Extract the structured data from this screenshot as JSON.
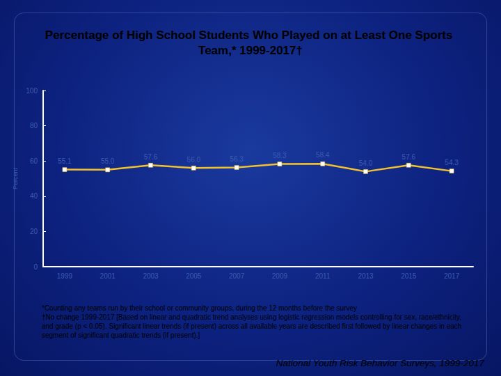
{
  "chart_data": {
    "type": "line",
    "title": "Percentage of High School Students Who Played on at Least One Sports Team,* 1999-2017†",
    "y_label": "Percent",
    "categories": [
      "1999",
      "2001",
      "2003",
      "2005",
      "2007",
      "2009",
      "2011",
      "2013",
      "2015",
      "2017"
    ],
    "values": [
      55.1,
      55.0,
      57.6,
      56.0,
      56.3,
      58.3,
      58.4,
      54.0,
      57.6,
      54.3
    ],
    "value_labels": [
      "55.1",
      "55.0",
      "57.6",
      "56.0",
      "56.3",
      "58.3",
      "58.4",
      "54.0",
      "57.6",
      "54.3"
    ],
    "color": "#f2c12e",
    "marker": "square",
    "line_style": "solid",
    "data_labels": true,
    "ylim": [
      0,
      100
    ],
    "yticks": [
      0,
      20,
      40,
      60,
      80,
      100
    ],
    "grid": false,
    "footnotes": [
      "*Counting any teams run by their school or community groups, during the 12 months before the survey",
      "†No change 1999-2017 [Based on linear and quadratic trend analyses using logistic regression models controlling for sex, race/ethnicity, and grade (p < 0.05). Significant linear trends (if present) across all available years are described first followed by linear changes in each segment of significant quadratic trends (if present).]"
    ],
    "source": "National Youth Risk Behavior Surveys, 1999-2017"
  }
}
